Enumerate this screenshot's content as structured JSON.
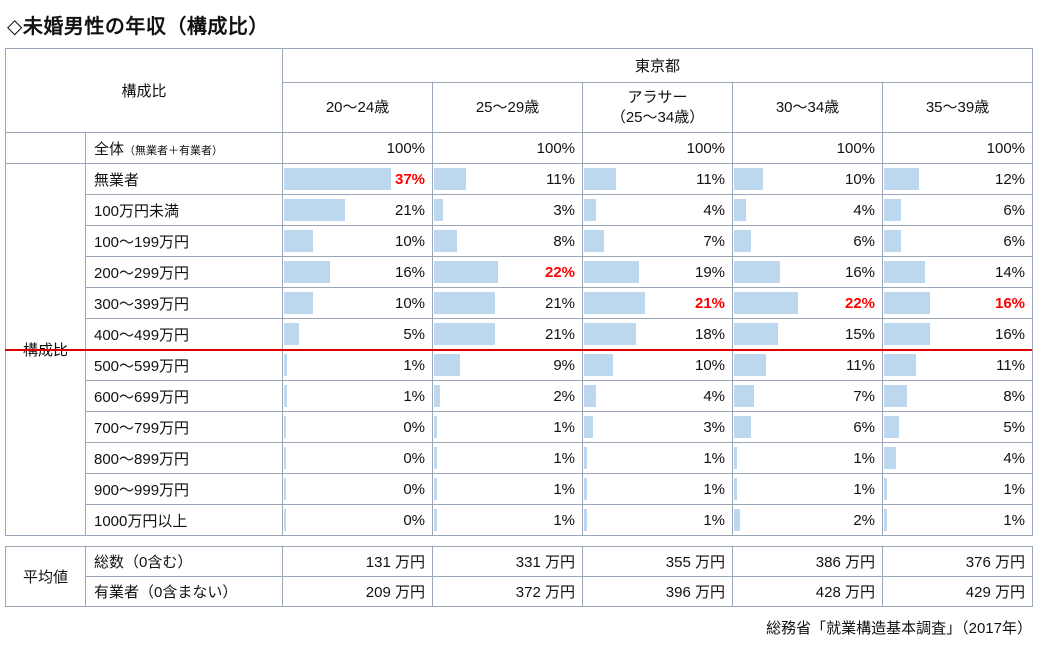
{
  "page": {
    "title": "◇未婚男性の年収（構成比）",
    "source": "総務省「就業構造基本調査」（2017年）"
  },
  "chart_data": {
    "type": "table",
    "title": "未婚男性の年収（構成比）",
    "region_header": "東京都",
    "corner_label": "構成比",
    "group_label": "構成比",
    "unit": "%",
    "bar_color": "#BDD7EE",
    "highlight_color": "#FF0000",
    "columns": [
      "20～24歳",
      "25～29歳",
      "アラサー\n（25～34歳）",
      "30～34歳",
      "35～39歳"
    ],
    "total_row": {
      "label_main": "全体",
      "label_note": "（無業者＋有業者）",
      "values": [
        100,
        100,
        100,
        100,
        100
      ]
    },
    "rows": [
      {
        "label": "無業者",
        "values": [
          37,
          11,
          11,
          10,
          12
        ],
        "red": [
          0
        ]
      },
      {
        "label": "100万円未満",
        "values": [
          21,
          3,
          4,
          4,
          6
        ],
        "red": []
      },
      {
        "label": "100～199万円",
        "values": [
          10,
          8,
          7,
          6,
          6
        ],
        "red": []
      },
      {
        "label": "200～299万円",
        "values": [
          16,
          22,
          19,
          16,
          14
        ],
        "red": [
          1
        ]
      },
      {
        "label": "300～399万円",
        "values": [
          10,
          21,
          21,
          22,
          16
        ],
        "red": [
          2,
          3,
          4
        ]
      },
      {
        "label": "400～499万円",
        "values": [
          5,
          21,
          18,
          15,
          16
        ],
        "red": []
      },
      {
        "label": "500～599万円",
        "values": [
          1,
          9,
          10,
          11,
          11
        ],
        "red": []
      },
      {
        "label": "600～699万円",
        "values": [
          1,
          2,
          4,
          7,
          8
        ],
        "red": []
      },
      {
        "label": "700～799万円",
        "values": [
          0,
          1,
          3,
          6,
          5
        ],
        "red": []
      },
      {
        "label": "800～899万円",
        "values": [
          0,
          1,
          1,
          1,
          4
        ],
        "red": []
      },
      {
        "label": "900～999万円",
        "values": [
          0,
          1,
          1,
          1,
          1
        ],
        "red": []
      },
      {
        "label": "1000万円以上",
        "values": [
          0,
          1,
          1,
          2,
          1
        ],
        "red": []
      }
    ],
    "red_line_after_row": "400～499万円",
    "averages": {
      "group_label": "平均値",
      "rows": [
        {
          "label": "総数（0含む）",
          "values": [
            "131 万円",
            "331 万円",
            "355 万円",
            "386 万円",
            "376 万円"
          ]
        },
        {
          "label": "有業者（0含まない）",
          "values": [
            "209 万円",
            "372 万円",
            "396 万円",
            "428 万円",
            "429 万円"
          ]
        }
      ]
    }
  }
}
